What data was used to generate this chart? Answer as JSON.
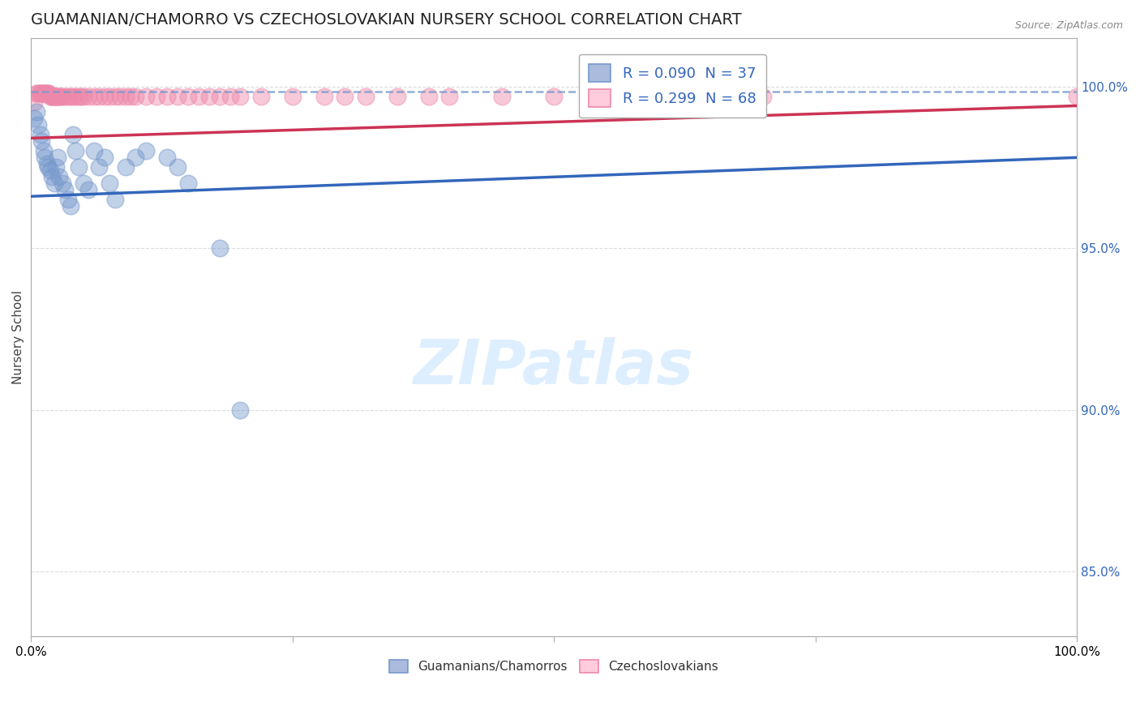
{
  "title": "GUAMANIAN/CHAMORRO VS CZECHOSLOVAKIAN NURSERY SCHOOL CORRELATION CHART",
  "source_text": "Source: ZipAtlas.com",
  "ylabel": "Nursery School",
  "xlim": [
    0.0,
    1.0
  ],
  "ylim": [
    0.83,
    1.015
  ],
  "yticks": [
    0.85,
    0.9,
    0.95,
    1.0
  ],
  "ytick_labels": [
    "85.0%",
    "90.0%",
    "95.0%",
    "100.0%"
  ],
  "xticks": [
    0.0,
    0.25,
    0.5,
    0.75,
    1.0
  ],
  "xtick_labels": [
    "0.0%",
    "",
    "",
    "",
    "100.0%"
  ],
  "legend_entries": [
    {
      "label": "R = 0.090  N = 37"
    },
    {
      "label": "R = 0.299  N = 68"
    }
  ],
  "legend_bottom": [
    {
      "label": "Guamanians/Chamorros"
    },
    {
      "label": "Czechoslovakians"
    }
  ],
  "background_color": "#ffffff",
  "grid_color": "#cccccc",
  "title_fontsize": 14,
  "blue_scatter_x": [
    0.003,
    0.005,
    0.007,
    0.009,
    0.01,
    0.012,
    0.013,
    0.015,
    0.016,
    0.018,
    0.02,
    0.022,
    0.024,
    0.025,
    0.027,
    0.03,
    0.032,
    0.035,
    0.038,
    0.04,
    0.042,
    0.045,
    0.05,
    0.055,
    0.06,
    0.065,
    0.07,
    0.075,
    0.08,
    0.09,
    0.1,
    0.11,
    0.13,
    0.14,
    0.15,
    0.18,
    0.2
  ],
  "blue_scatter_y": [
    0.99,
    0.992,
    0.988,
    0.985,
    0.983,
    0.98,
    0.978,
    0.976,
    0.975,
    0.974,
    0.972,
    0.97,
    0.975,
    0.978,
    0.972,
    0.97,
    0.968,
    0.965,
    0.963,
    0.985,
    0.98,
    0.975,
    0.97,
    0.968,
    0.98,
    0.975,
    0.978,
    0.97,
    0.965,
    0.975,
    0.978,
    0.98,
    0.978,
    0.975,
    0.97,
    0.95,
    0.9
  ],
  "pink_scatter_x": [
    0.003,
    0.005,
    0.006,
    0.008,
    0.009,
    0.01,
    0.011,
    0.012,
    0.013,
    0.014,
    0.015,
    0.016,
    0.017,
    0.018,
    0.019,
    0.02,
    0.021,
    0.022,
    0.023,
    0.024,
    0.025,
    0.026,
    0.027,
    0.028,
    0.03,
    0.032,
    0.035,
    0.038,
    0.04,
    0.042,
    0.045,
    0.048,
    0.05,
    0.055,
    0.06,
    0.065,
    0.07,
    0.075,
    0.08,
    0.085,
    0.09,
    0.095,
    0.1,
    0.11,
    0.12,
    0.13,
    0.14,
    0.15,
    0.16,
    0.17,
    0.18,
    0.19,
    0.2,
    0.22,
    0.25,
    0.28,
    0.3,
    0.32,
    0.35,
    0.38,
    0.4,
    0.45,
    0.5,
    0.55,
    0.6,
    0.65,
    0.7,
    1.0
  ],
  "pink_scatter_y": [
    0.995,
    0.998,
    0.998,
    0.998,
    0.998,
    0.998,
    0.998,
    0.998,
    0.998,
    0.998,
    0.998,
    0.998,
    0.998,
    0.997,
    0.997,
    0.997,
    0.997,
    0.997,
    0.997,
    0.997,
    0.997,
    0.997,
    0.997,
    0.997,
    0.997,
    0.997,
    0.997,
    0.997,
    0.997,
    0.997,
    0.997,
    0.997,
    0.997,
    0.997,
    0.997,
    0.997,
    0.997,
    0.997,
    0.997,
    0.997,
    0.997,
    0.997,
    0.997,
    0.997,
    0.997,
    0.997,
    0.997,
    0.997,
    0.997,
    0.997,
    0.997,
    0.997,
    0.997,
    0.997,
    0.997,
    0.997,
    0.997,
    0.997,
    0.997,
    0.997,
    0.997,
    0.997,
    0.997,
    0.997,
    0.997,
    0.997,
    0.997,
    0.997
  ],
  "blue_line_x0": 0.0,
  "blue_line_x1": 1.0,
  "blue_line_y0": 0.966,
  "blue_line_y1": 0.978,
  "pink_line_x0": 0.0,
  "pink_line_x1": 1.0,
  "pink_line_y0": 0.984,
  "pink_line_y1": 0.994,
  "dashed_line_x0": 0.0,
  "dashed_line_x1": 1.0,
  "dashed_line_y0": 0.9985,
  "dashed_line_y1": 0.9985,
  "blue_scatter_color": "#7799cc",
  "pink_scatter_color": "#ee88aa",
  "blue_line_color": "#3366bb",
  "pink_line_color": "#cc3355",
  "dashed_color": "#7799cc",
  "watermark_color": "#ddeeff"
}
